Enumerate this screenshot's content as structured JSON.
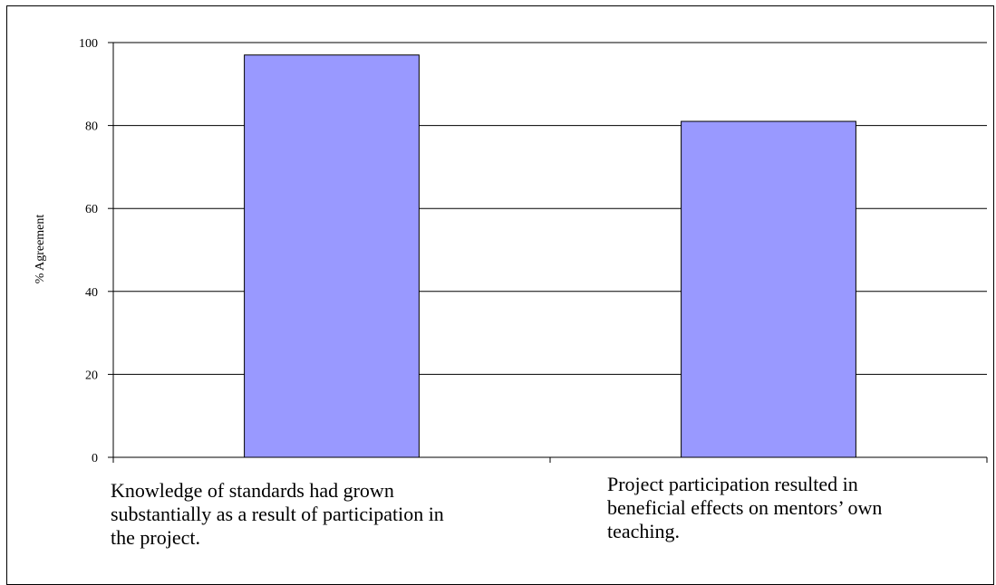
{
  "chart_data": {
    "type": "bar",
    "categories": [
      "Knowledge of standards had grown\nsubstantially as a result of participation in\nthe project.",
      "Project participation resulted  in\nbeneficial effects on mentors’ own\nteaching."
    ],
    "values": [
      97,
      81
    ],
    "ylabel": "% Agreement",
    "ylim": [
      0,
      100
    ],
    "yticks": [
      "0",
      "20",
      "40",
      "60",
      "80",
      "100"
    ],
    "grid": true,
    "legend": "none"
  },
  "colors": {
    "bar_fill": "#9999ff",
    "bar_stroke": "#000000",
    "grid": "#000000",
    "axis": "#000000"
  }
}
